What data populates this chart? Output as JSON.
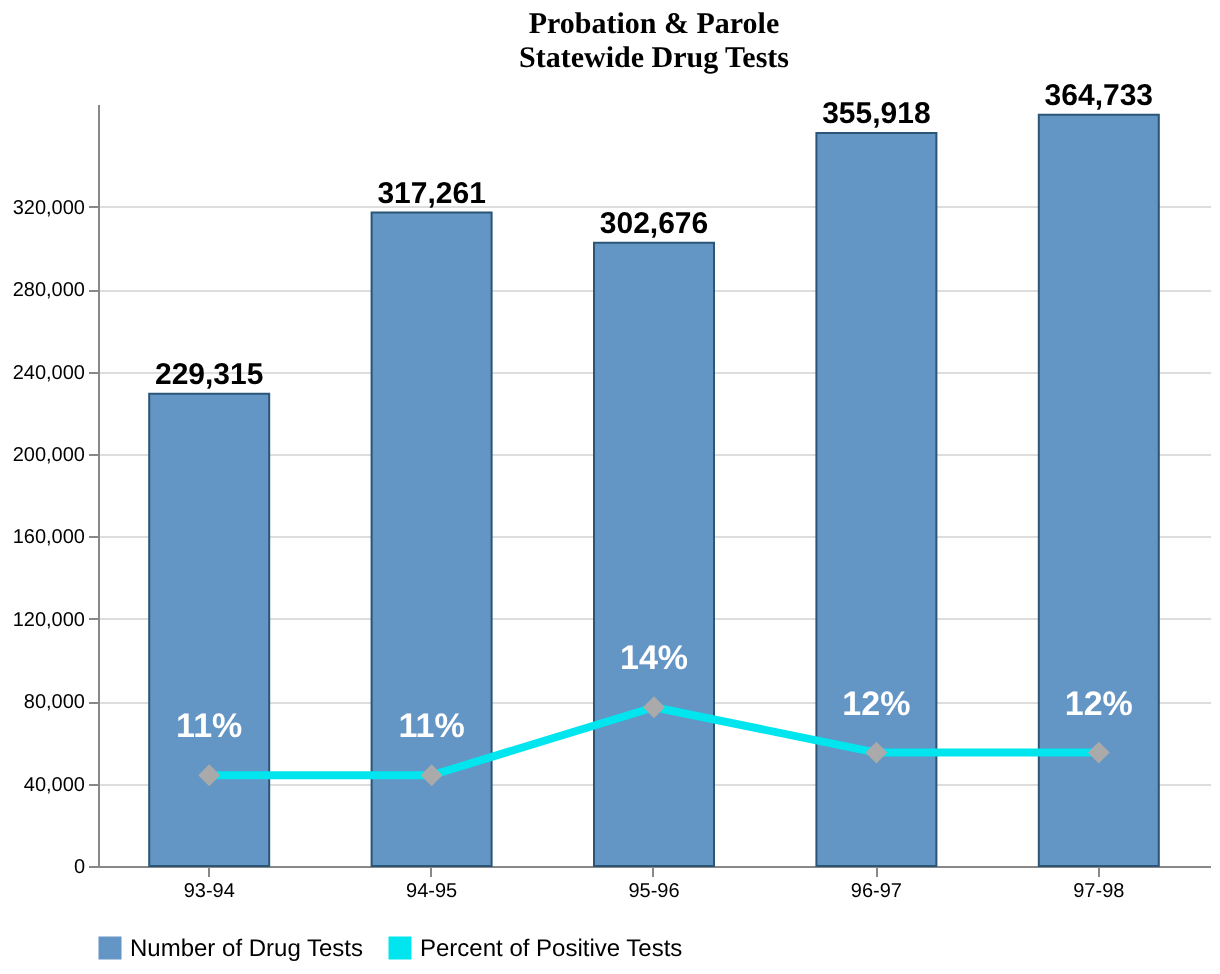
{
  "chart_data": {
    "type": "bar",
    "title": "Probation & Parole\nStatewide Drug Tests",
    "categories": [
      "93-94",
      "94-95",
      "95-96",
      "96-97",
      "97-98"
    ],
    "series": [
      {
        "name": "Number of Drug Tests",
        "color": "#6395c5",
        "values": [
          229315,
          317261,
          302676,
          355918,
          364733
        ],
        "value_labels": [
          "229,315",
          "317,261",
          "302,676",
          "355,918",
          "364,733"
        ]
      },
      {
        "name": "Percent of Positive Tests",
        "type": "line",
        "axis": "y2",
        "color": "#00e5ee",
        "marker": "diamond",
        "values": [
          11,
          11,
          14,
          12,
          12
        ],
        "value_labels": [
          "11%",
          "11%",
          "14%",
          "12%",
          "12%"
        ]
      }
    ],
    "ylim": [
      0,
      370000
    ],
    "yticks": [
      0,
      {
        "value": 40000,
        "label": "40,000"
      },
      {
        "value": 80000,
        "label": "80,000"
      },
      {
        "value": 120000,
        "label": "120,000"
      },
      {
        "value": 160000,
        "label": "160,000"
      },
      {
        "value": 200000,
        "label": "200,000"
      },
      {
        "value": 240000,
        "label": "240,000"
      },
      {
        "value": 280000,
        "label": "280,000"
      },
      {
        "value": 320000,
        "label": "320,000"
      }
    ],
    "y2lim": [
      7,
      40.6
    ],
    "grid": "y",
    "legend": "bottom"
  }
}
